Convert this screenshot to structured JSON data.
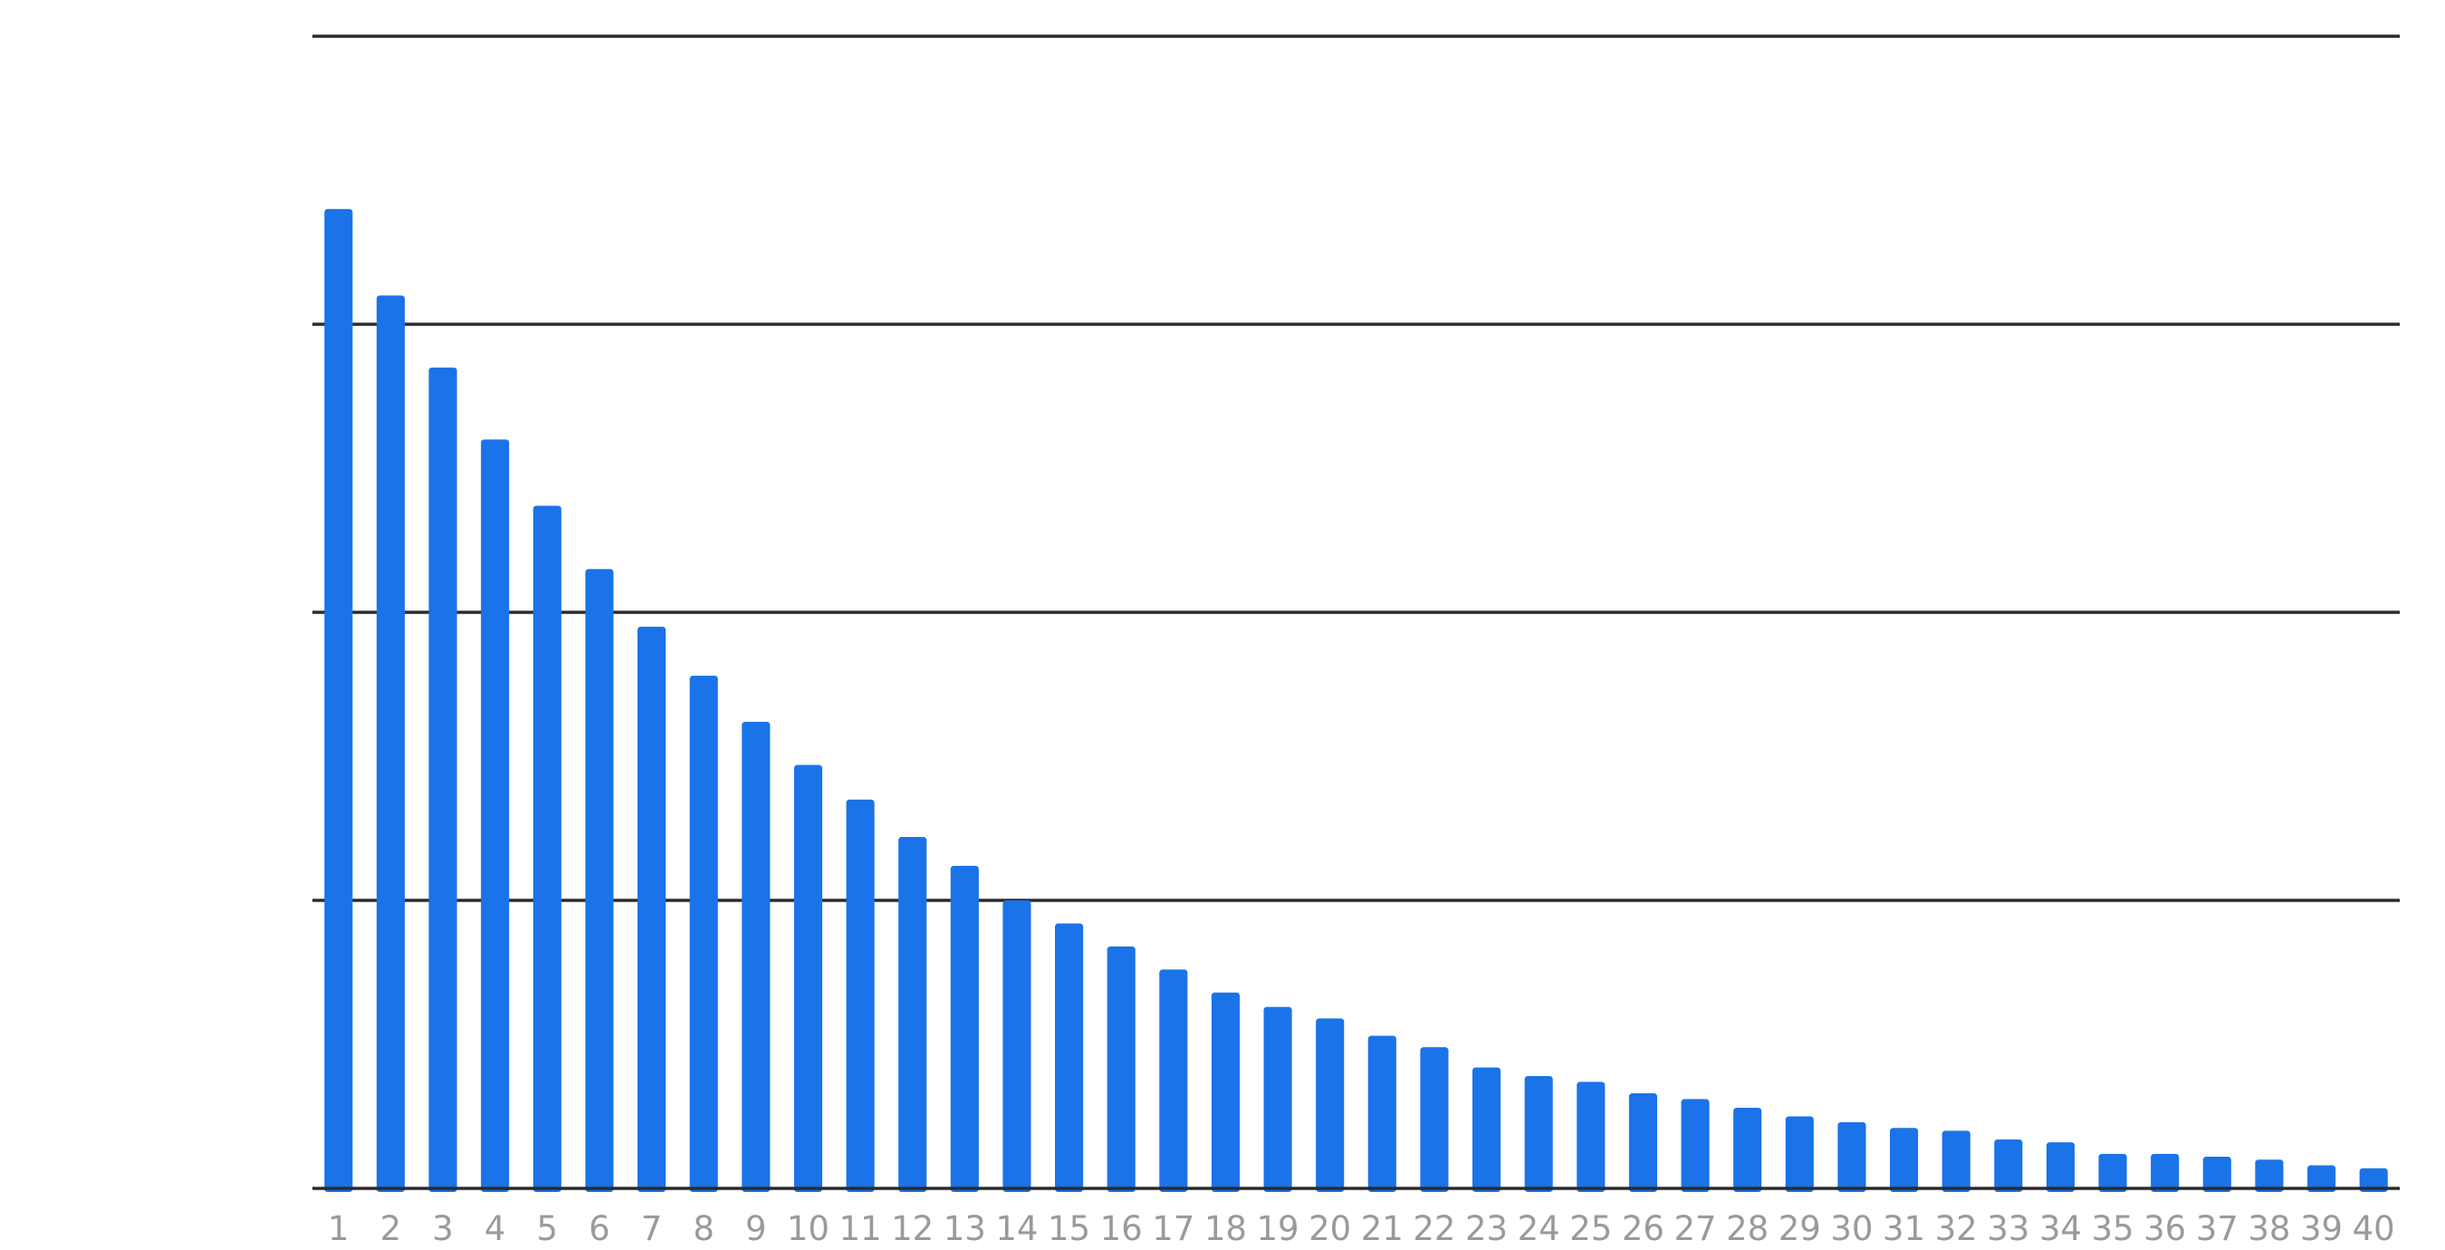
{
  "chart_data": {
    "type": "bar",
    "categories": [
      "1",
      "2",
      "3",
      "4",
      "5",
      "6",
      "7",
      "8",
      "9",
      "10",
      "11",
      "12",
      "13",
      "14",
      "15",
      "16",
      "17",
      "18",
      "19",
      "20",
      "21",
      "22",
      "23",
      "24",
      "25",
      "26",
      "27",
      "28",
      "29",
      "30",
      "31",
      "32",
      "33",
      "34",
      "35",
      "36",
      "37",
      "38",
      "39",
      "40"
    ],
    "values": [
      3.4,
      3.1,
      2.85,
      2.6,
      2.37,
      2.15,
      1.95,
      1.78,
      1.62,
      1.47,
      1.35,
      1.22,
      1.12,
      1.0,
      0.92,
      0.84,
      0.76,
      0.68,
      0.63,
      0.59,
      0.53,
      0.49,
      0.42,
      0.39,
      0.37,
      0.33,
      0.31,
      0.28,
      0.25,
      0.23,
      0.21,
      0.2,
      0.17,
      0.16,
      0.12,
      0.12,
      0.11,
      0.1,
      0.08,
      0.07
    ],
    "title": "",
    "xlabel": "",
    "ylabel": "",
    "ylim": [
      0,
      4
    ],
    "gridlines_at": [
      1,
      2,
      3,
      4
    ],
    "grid": true,
    "legend": "none",
    "bar_color": "#1a73e8",
    "gridline_color": "#2b2b2b",
    "tick_label_color": "#9a9a9a"
  }
}
